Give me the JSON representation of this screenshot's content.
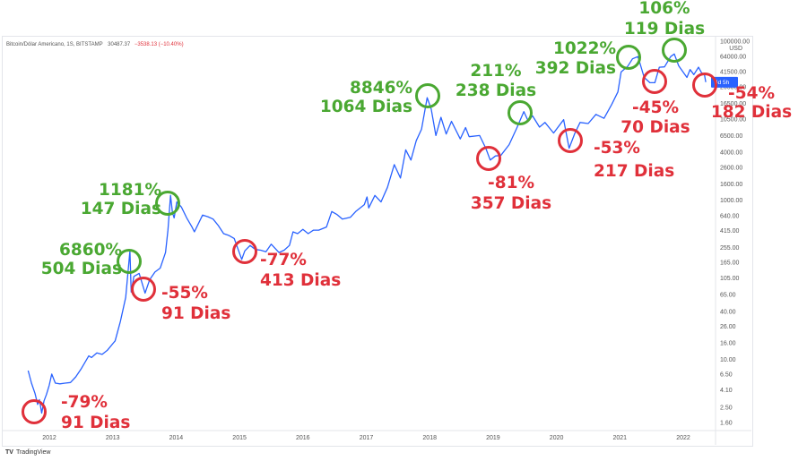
{
  "header": {
    "symbol": "Bitcoin/Dólar Americano, 1S, BITSTAMP",
    "price": "30487.37",
    "change": "−3538.13 (−10.40%)"
  },
  "footer": {
    "logo": "TV",
    "brand": "TradingView"
  },
  "colors": {
    "line": "#2962ff",
    "green": "#4aa832",
    "red": "#e0303a",
    "price_tag": "#2962ff"
  },
  "chart_data": {
    "type": "line",
    "x_axis": {
      "tick_labels": [
        "2012",
        "2013",
        "2014",
        "2015",
        "2016",
        "2017",
        "2018",
        "2019",
        "2020",
        "2021",
        "2022"
      ]
    },
    "y_axis": {
      "scale": "log",
      "currency_label": "USD",
      "tick_labels": [
        "100000.00",
        "64000.00",
        "41500.00",
        "26500.00",
        "16500.00",
        "10500.00",
        "6500.00",
        "4000.00",
        "2600.00",
        "1600.00",
        "1000.00",
        "640.00",
        "415.00",
        "255.00",
        "165.00",
        "105.00",
        "65.00",
        "40.00",
        "26.00",
        "16.00",
        "10.00",
        "6.50",
        "4.10",
        "2.50",
        "1.60"
      ],
      "ylim": [
        1.6,
        100000
      ]
    },
    "current_price_tag": "4d 5h",
    "series": [
      {
        "points": [
          [
            "2011-09-01",
            7.2
          ],
          [
            "2011-09-20",
            5.0
          ],
          [
            "2011-10-10",
            3.7
          ],
          [
            "2011-10-25",
            2.7
          ],
          [
            "2011-11-05",
            3.1
          ],
          [
            "2011-11-18",
            2.1
          ],
          [
            "2011-12-01",
            3.0
          ],
          [
            "2011-12-15",
            3.6
          ],
          [
            "2011-12-31",
            4.7
          ],
          [
            "2012-01-15",
            6.5
          ],
          [
            "2012-02-05",
            5.0
          ],
          [
            "2012-03-01",
            4.9
          ],
          [
            "2012-04-01",
            5.0
          ],
          [
            "2012-05-01",
            5.1
          ],
          [
            "2012-06-01",
            6.0
          ],
          [
            "2012-07-01",
            7.5
          ],
          [
            "2012-08-15",
            11.0
          ],
          [
            "2012-09-01",
            10.5
          ],
          [
            "2012-10-01",
            12.0
          ],
          [
            "2012-11-01",
            11.5
          ],
          [
            "2012-12-01",
            13.0
          ],
          [
            "2013-01-15",
            17.0
          ],
          [
            "2013-02-15",
            30.0
          ],
          [
            "2013-03-15",
            60.0
          ],
          [
            "2013-04-09",
            230.0
          ],
          [
            "2013-04-16",
            70.0
          ],
          [
            "2013-05-01",
            110.0
          ],
          [
            "2013-06-01",
            120.0
          ],
          [
            "2013-07-05",
            68.0
          ],
          [
            "2013-08-01",
            100.0
          ],
          [
            "2013-09-01",
            125.0
          ],
          [
            "2013-10-01",
            140.0
          ],
          [
            "2013-11-01",
            220.0
          ],
          [
            "2013-11-15",
            420.0
          ],
          [
            "2013-11-30",
            1150.0
          ],
          [
            "2013-12-10",
            700.0
          ],
          [
            "2013-12-20",
            600.0
          ],
          [
            "2014-01-05",
            950.0
          ],
          [
            "2014-02-01",
            820.0
          ],
          [
            "2014-03-01",
            600.0
          ],
          [
            "2014-04-01",
            460.0
          ],
          [
            "2014-04-15",
            400.0
          ],
          [
            "2014-06-01",
            650.0
          ],
          [
            "2014-07-01",
            620.0
          ],
          [
            "2014-08-01",
            580.0
          ],
          [
            "2014-09-01",
            480.0
          ],
          [
            "2014-10-01",
            380.0
          ],
          [
            "2014-11-01",
            360.0
          ],
          [
            "2014-12-01",
            330.0
          ],
          [
            "2015-01-14",
            180.0
          ],
          [
            "2015-02-01",
            230.0
          ],
          [
            "2015-03-01",
            270.0
          ],
          [
            "2015-04-01",
            240.0
          ],
          [
            "2015-05-01",
            235.0
          ],
          [
            "2015-06-01",
            225.0
          ],
          [
            "2015-07-01",
            280.0
          ],
          [
            "2015-08-15",
            220.0
          ],
          [
            "2015-09-15",
            235.0
          ],
          [
            "2015-10-15",
            270.0
          ],
          [
            "2015-11-05",
            400.0
          ],
          [
            "2015-12-01",
            380.0
          ],
          [
            "2016-01-01",
            430.0
          ],
          [
            "2016-02-01",
            380.0
          ],
          [
            "2016-03-01",
            420.0
          ],
          [
            "2016-04-01",
            420.0
          ],
          [
            "2016-05-15",
            460.0
          ],
          [
            "2016-06-15",
            720.0
          ],
          [
            "2016-07-15",
            660.0
          ],
          [
            "2016-08-15",
            580.0
          ],
          [
            "2016-10-01",
            610.0
          ],
          [
            "2016-11-01",
            720.0
          ],
          [
            "2016-12-20",
            880.0
          ],
          [
            "2017-01-05",
            1100.0
          ],
          [
            "2017-01-15",
            800.0
          ],
          [
            "2017-02-20",
            1150.0
          ],
          [
            "2017-03-25",
            950.0
          ],
          [
            "2017-05-01",
            1450.0
          ],
          [
            "2017-06-10",
            2800.0
          ],
          [
            "2017-07-15",
            1900.0
          ],
          [
            "2017-08-15",
            4300.0
          ],
          [
            "2017-09-15",
            3200.0
          ],
          [
            "2017-10-15",
            5600.0
          ],
          [
            "2017-11-15",
            7800.0
          ],
          [
            "2017-12-17",
            19500.0
          ],
          [
            "2018-01-10",
            14000.0
          ],
          [
            "2018-02-06",
            6500.0
          ],
          [
            "2018-03-05",
            11000.0
          ],
          [
            "2018-04-05",
            6800.0
          ],
          [
            "2018-05-05",
            9800.0
          ],
          [
            "2018-06-25",
            5900.0
          ],
          [
            "2018-07-25",
            8200.0
          ],
          [
            "2018-08-15",
            6300.0
          ],
          [
            "2018-10-15",
            6500.0
          ],
          [
            "2018-11-20",
            4500.0
          ],
          [
            "2018-12-15",
            3200.0
          ],
          [
            "2019-01-15",
            3600.0
          ],
          [
            "2019-02-15",
            3650.0
          ],
          [
            "2019-04-02",
            5000.0
          ],
          [
            "2019-05-15",
            8000.0
          ],
          [
            "2019-06-26",
            13000.0
          ],
          [
            "2019-07-20",
            10000.0
          ],
          [
            "2019-08-15",
            11500.0
          ],
          [
            "2019-09-25",
            8300.0
          ],
          [
            "2019-10-26",
            9500.0
          ],
          [
            "2019-12-15",
            7000.0
          ],
          [
            "2020-02-12",
            10300.0
          ],
          [
            "2020-03-13",
            4500.0
          ],
          [
            "2020-04-15",
            6900.0
          ],
          [
            "2020-05-15",
            9500.0
          ],
          [
            "2020-07-01",
            9200.0
          ],
          [
            "2020-08-15",
            12000.0
          ],
          [
            "2020-10-01",
            10700.0
          ],
          [
            "2020-11-15",
            16000.0
          ],
          [
            "2020-12-20",
            23000.0
          ],
          [
            "2021-01-08",
            41000.0
          ],
          [
            "2021-02-15",
            48000.0
          ],
          [
            "2021-03-13",
            60000.0
          ],
          [
            "2021-04-14",
            64000.0
          ],
          [
            "2021-05-19",
            35000.0
          ],
          [
            "2021-06-22",
            30000.0
          ],
          [
            "2021-07-20",
            30000.0
          ],
          [
            "2021-08-15",
            47000.0
          ],
          [
            "2021-09-15",
            47500.0
          ],
          [
            "2021-10-20",
            64000.0
          ],
          [
            "2021-11-10",
            69000.0
          ],
          [
            "2021-12-05",
            49000.0
          ],
          [
            "2022-01-22",
            35000.0
          ],
          [
            "2022-02-10",
            44000.0
          ],
          [
            "2022-03-01",
            38000.0
          ],
          [
            "2022-03-28",
            47000.0
          ],
          [
            "2022-04-15",
            40000.0
          ],
          [
            "2022-05-01",
            38000.0
          ],
          [
            "2022-05-09",
            30487.0
          ]
        ]
      }
    ],
    "annotations": [
      {
        "kind": "bottom",
        "at": [
          "2011-11-18",
          2.1
        ],
        "pct": "-79%",
        "days": "91 Dias",
        "label_anchor": "start"
      },
      {
        "kind": "top",
        "at": [
          "2013-04-09",
          200.0
        ],
        "pct": "6860%",
        "days": "504 Dias",
        "label_anchor": "end"
      },
      {
        "kind": "bottom",
        "at": [
          "2013-07-05",
          68.0
        ],
        "pct": "-55%",
        "days": "91 Dias",
        "label_anchor": "start"
      },
      {
        "kind": "top",
        "at": [
          "2013-11-30",
          1000.0
        ],
        "pct": "1181%",
        "days": "147 Dias",
        "label_anchor": "end"
      },
      {
        "kind": "bottom",
        "at": [
          "2015-01-14",
          180.0
        ],
        "pct": "-77%",
        "days": "413 Dias",
        "label_anchor": "start"
      },
      {
        "kind": "top",
        "at": [
          "2017-12-17",
          19500.0
        ],
        "pct": "8846%",
        "days": "1064 Dias",
        "label_anchor": "end"
      },
      {
        "kind": "bottom",
        "at": [
          "2018-12-15",
          3200.0
        ],
        "pct": "-81%",
        "days": "357 Dias",
        "label_anchor": "middle"
      },
      {
        "kind": "top",
        "at": [
          "2019-06-26",
          13000.0
        ],
        "pct": "211%",
        "days": "238 Dias",
        "label_anchor": "middle"
      },
      {
        "kind": "bottom",
        "at": [
          "2020-03-13",
          5200.0
        ],
        "pct": "-53%",
        "days": "217 Dias",
        "label_anchor": "start"
      },
      {
        "kind": "top",
        "at": [
          "2021-04-14",
          64000.0
        ],
        "pct": "1022%",
        "days": "392 Dias",
        "label_anchor": "end"
      },
      {
        "kind": "bottom",
        "at": [
          "2021-06-22",
          30000.0
        ],
        "pct": "-45%",
        "days": "70 Dias",
        "label_anchor": "middle"
      },
      {
        "kind": "top",
        "at": [
          "2021-11-10",
          75000.0
        ],
        "pct": "106%",
        "days": "119 Dias",
        "label_anchor": "middle"
      },
      {
        "kind": "bottom",
        "at": [
          "2022-05-09",
          30487.0
        ],
        "pct": "-54%",
        "days": "182 Dias",
        "label_anchor": "middle"
      }
    ]
  }
}
